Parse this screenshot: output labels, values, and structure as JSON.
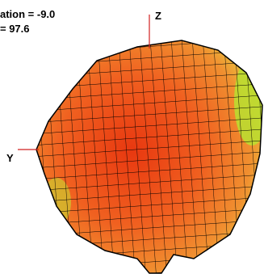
{
  "labels": {
    "elevation": "ation = -9.0",
    "value": "= 97.6"
  },
  "axes": {
    "z": "Z",
    "y": "Y"
  }
}
